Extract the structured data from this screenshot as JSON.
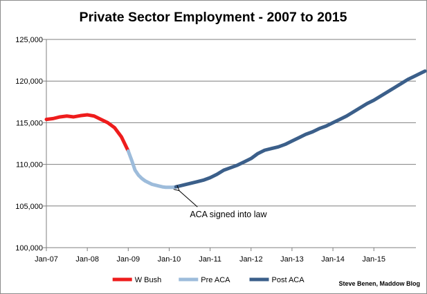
{
  "chart_data": {
    "type": "line",
    "title": "Private Sector Employment - 2007 to 2015",
    "xlabel": "",
    "ylabel": "",
    "ylim": [
      100000,
      125000
    ],
    "y_ticks": [
      100000,
      105000,
      110000,
      115000,
      120000,
      125000
    ],
    "y_tick_labels": [
      "100,000",
      "105,000",
      "110,000",
      "115,000",
      "120,000",
      "125,000"
    ],
    "x_ticks": [
      "2007-01",
      "2008-01",
      "2009-01",
      "2010-01",
      "2011-01",
      "2012-01",
      "2013-01",
      "2014-01",
      "2015-01"
    ],
    "x_tick_labels": [
      "Jan-07",
      "Jan-08",
      "Jan-09",
      "Jan-10",
      "Jan-11",
      "Jan-12",
      "Jan-13",
      "Jan-14",
      "Jan-15"
    ],
    "x_range": [
      "2007-01",
      "2015-12"
    ],
    "grid": "horizontal",
    "legend_position": "bottom",
    "series": [
      {
        "name": "W Bush",
        "color": "#ee1c1c",
        "points": [
          [
            "2007-01",
            115400
          ],
          [
            "2007-03",
            115500
          ],
          [
            "2007-05",
            115700
          ],
          [
            "2007-07",
            115800
          ],
          [
            "2007-09",
            115700
          ],
          [
            "2007-11",
            115850
          ],
          [
            "2008-01",
            115950
          ],
          [
            "2008-03",
            115800
          ],
          [
            "2008-05",
            115400
          ],
          [
            "2008-07",
            115000
          ],
          [
            "2008-09",
            114400
          ],
          [
            "2008-11",
            113300
          ],
          [
            "2009-01",
            111600
          ]
        ]
      },
      {
        "name": "Pre ACA",
        "color": "#9dbcdb",
        "points": [
          [
            "2009-01",
            111600
          ],
          [
            "2009-02",
            110500
          ],
          [
            "2009-03",
            109300
          ],
          [
            "2009-04",
            108700
          ],
          [
            "2009-05",
            108300
          ],
          [
            "2009-06",
            108000
          ],
          [
            "2009-07",
            107800
          ],
          [
            "2009-08",
            107600
          ],
          [
            "2009-09",
            107500
          ],
          [
            "2009-10",
            107400
          ],
          [
            "2009-11",
            107300
          ],
          [
            "2009-12",
            107250
          ],
          [
            "2010-01",
            107250
          ],
          [
            "2010-02",
            107250
          ],
          [
            "2010-03",
            107300
          ]
        ]
      },
      {
        "name": "Post ACA",
        "color": "#3b5f8a",
        "points": [
          [
            "2010-03",
            107300
          ],
          [
            "2010-05",
            107500
          ],
          [
            "2010-07",
            107700
          ],
          [
            "2010-09",
            107900
          ],
          [
            "2010-11",
            108100
          ],
          [
            "2011-01",
            108400
          ],
          [
            "2011-03",
            108800
          ],
          [
            "2011-05",
            109300
          ],
          [
            "2011-07",
            109600
          ],
          [
            "2011-09",
            109900
          ],
          [
            "2011-11",
            110300
          ],
          [
            "2012-01",
            110700
          ],
          [
            "2012-03",
            111300
          ],
          [
            "2012-05",
            111700
          ],
          [
            "2012-07",
            111900
          ],
          [
            "2012-09",
            112100
          ],
          [
            "2012-11",
            112400
          ],
          [
            "2013-01",
            112800
          ],
          [
            "2013-03",
            113200
          ],
          [
            "2013-05",
            113600
          ],
          [
            "2013-07",
            113900
          ],
          [
            "2013-09",
            114300
          ],
          [
            "2013-11",
            114600
          ],
          [
            "2014-01",
            115000
          ],
          [
            "2014-03",
            115400
          ],
          [
            "2014-05",
            115800
          ],
          [
            "2014-07",
            116300
          ],
          [
            "2014-09",
            116800
          ],
          [
            "2014-11",
            117300
          ],
          [
            "2015-01",
            117700
          ],
          [
            "2015-03",
            118200
          ],
          [
            "2015-05",
            118700
          ],
          [
            "2015-07",
            119200
          ],
          [
            "2015-09",
            119700
          ],
          [
            "2015-11",
            120200
          ],
          [
            "2015-12",
            120400
          ],
          [
            "2016-01",
            120600
          ],
          [
            "2016-03",
            121000
          ],
          [
            "2016-04",
            121200
          ]
        ]
      }
    ],
    "annotations": [
      {
        "text": "ACA signed into law",
        "x": "2010-03",
        "y": 107300
      }
    ],
    "credit": "Steve Benen, Maddow Blog"
  }
}
